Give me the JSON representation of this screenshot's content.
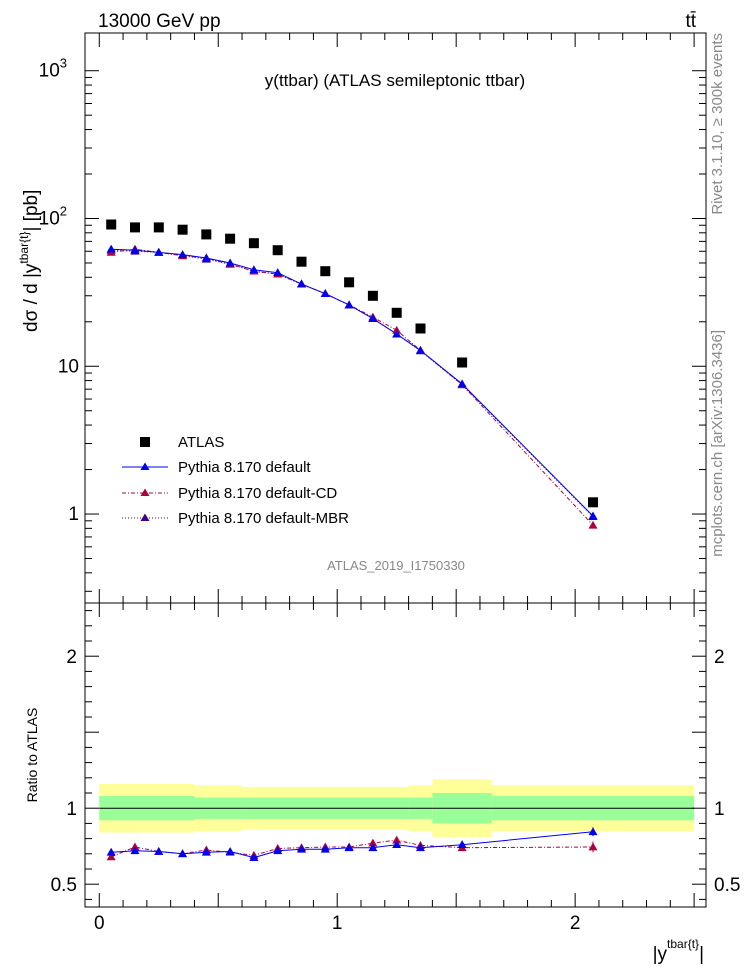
{
  "header": {
    "left": "13000 GeV pp",
    "right": "tt̄"
  },
  "side": {
    "rivet": "Rivet 3.1.10, ≥ 300k events",
    "mcplots": "mcplots.cern.ch [arXiv:1306.3436]"
  },
  "colors": {
    "atlas": "#000000",
    "pythia_default": "#0000ee",
    "pythia_cd": "#b00040",
    "pythia_mbr": "#400080",
    "band_inner": "#99ff99",
    "band_outer": "#ffff99"
  },
  "chart_data": [
    {
      "type": "scatter",
      "panel": "main",
      "title": "y(ttbar) (ATLAS semileptonic ttbar)",
      "ylabel_parts": {
        "prefix": "dσ / d |y",
        "sup1": "tbar{t",
        "sup2": "}",
        "suffix": "| [pb]"
      },
      "xlabel_parts": {
        "prefix": "|y",
        "sup1": "tbar{t",
        "sup2": "}",
        "suffix": "|"
      },
      "yscale": "log",
      "xlim": [
        -0.06,
        2.55
      ],
      "ylim": [
        0.25,
        1800
      ],
      "yticks": [
        {
          "value": 1,
          "label": "1"
        },
        {
          "value": 10,
          "label": "10"
        },
        {
          "value": 100,
          "label": "10",
          "exp": "2"
        },
        {
          "value": 1000,
          "label": "10",
          "exp": "3"
        }
      ],
      "watermark": "ATLAS_2019_I1750330",
      "legend_position": "lower-left",
      "series": [
        {
          "name": "ATLAS",
          "style": "square",
          "x": [
            0.05,
            0.15,
            0.25,
            0.35,
            0.45,
            0.55,
            0.65,
            0.75,
            0.85,
            0.95,
            1.05,
            1.15,
            1.25,
            1.35,
            1.525,
            2.075
          ],
          "y": [
            91,
            87,
            87,
            84,
            78,
            73,
            68,
            61,
            51,
            44,
            37,
            30,
            23,
            18,
            10.6,
            1.2
          ]
        },
        {
          "name": "Pythia 8.170 default",
          "style": "solid",
          "x": [
            0.05,
            0.15,
            0.25,
            0.35,
            0.45,
            0.55,
            0.65,
            0.75,
            0.85,
            0.95,
            1.05,
            1.15,
            1.25,
            1.35,
            1.525,
            2.075
          ],
          "y": [
            62,
            61,
            59,
            57,
            54,
            50,
            45,
            43,
            36,
            31,
            26,
            21,
            16.5,
            12.8,
            7.6,
            0.97
          ]
        },
        {
          "name": "Pythia 8.170 default-CD",
          "style": "dashdot",
          "x": [
            0.05,
            0.15,
            0.25,
            0.35,
            0.45,
            0.55,
            0.65,
            0.75,
            0.85,
            0.95,
            1.05,
            1.15,
            1.25,
            1.35,
            1.525,
            2.075
          ],
          "y": [
            59,
            62,
            59,
            56,
            54,
            49,
            44,
            42,
            36,
            31,
            26,
            21.5,
            17.5,
            12.8,
            7.5,
            0.84
          ]
        },
        {
          "name": "Pythia 8.170 default-MBR",
          "style": "dotted",
          "x": [
            0.05,
            0.15,
            0.25,
            0.35,
            0.45,
            0.55,
            0.65,
            0.75,
            0.85,
            0.95,
            1.05,
            1.15,
            1.25,
            1.35,
            1.525,
            2.075
          ],
          "y": [
            61,
            60,
            59,
            56,
            53,
            49,
            44,
            42,
            36,
            31,
            26,
            21,
            16.5,
            12.7,
            7.5,
            0.96
          ]
        }
      ]
    },
    {
      "type": "line",
      "panel": "ratio",
      "ylabel": "Ratio to ATLAS",
      "xlim": [
        -0.06,
        2.55
      ],
      "ylim": [
        0.35,
        2.35
      ],
      "yticks": [
        {
          "value": 0.5,
          "label": "0.5"
        },
        {
          "value": 1,
          "label": "1"
        },
        {
          "value": 2,
          "label": "2"
        }
      ],
      "xticks": [
        {
          "value": 0,
          "label": "0"
        },
        {
          "value": 1,
          "label": "1"
        },
        {
          "value": 2,
          "label": "2"
        }
      ],
      "bands": {
        "edges": [
          0,
          0.4,
          0.6,
          1.3,
          1.4,
          1.65,
          2.5
        ],
        "inner": [
          [
            0.92,
            1.08
          ],
          [
            0.93,
            1.07
          ],
          [
            0.93,
            1.07
          ],
          [
            0.93,
            1.07
          ],
          [
            0.9,
            1.1
          ],
          [
            0.92,
            1.08
          ]
        ],
        "outer": [
          [
            0.84,
            1.16
          ],
          [
            0.85,
            1.15
          ],
          [
            0.86,
            1.14
          ],
          [
            0.85,
            1.15
          ],
          [
            0.81,
            1.19
          ],
          [
            0.85,
            1.15
          ]
        ]
      },
      "series": [
        {
          "name": "Pythia 8.170 default",
          "style": "solid",
          "x": [
            0.05,
            0.15,
            0.25,
            0.35,
            0.45,
            0.55,
            0.65,
            0.75,
            0.85,
            0.95,
            1.05,
            1.15,
            1.25,
            1.35,
            1.525,
            2.075
          ],
          "y": [
            0.71,
            0.72,
            0.715,
            0.7,
            0.71,
            0.715,
            0.675,
            0.72,
            0.73,
            0.73,
            0.74,
            0.74,
            0.76,
            0.74,
            0.76,
            0.845
          ],
          "err": [
            0.015,
            0.015,
            0.015,
            0.015,
            0.015,
            0.015,
            0.015,
            0.015,
            0.015,
            0.015,
            0.015,
            0.015,
            0.02,
            0.02,
            0.02,
            0.03
          ]
        },
        {
          "name": "Pythia 8.170 default-CD",
          "style": "dashdot",
          "x": [
            0.05,
            0.15,
            0.25,
            0.35,
            0.45,
            0.55,
            0.65,
            0.75,
            0.85,
            0.95,
            1.05,
            1.15,
            1.25,
            1.35,
            1.525,
            2.075
          ],
          "y": [
            0.68,
            0.745,
            0.715,
            0.7,
            0.725,
            0.71,
            0.69,
            0.735,
            0.74,
            0.745,
            0.745,
            0.77,
            0.79,
            0.755,
            0.74,
            0.745
          ],
          "err": [
            0.015,
            0.015,
            0.015,
            0.015,
            0.015,
            0.015,
            0.015,
            0.015,
            0.015,
            0.015,
            0.015,
            0.02,
            0.02,
            0.025,
            0.02,
            0.035
          ]
        }
      ]
    }
  ]
}
